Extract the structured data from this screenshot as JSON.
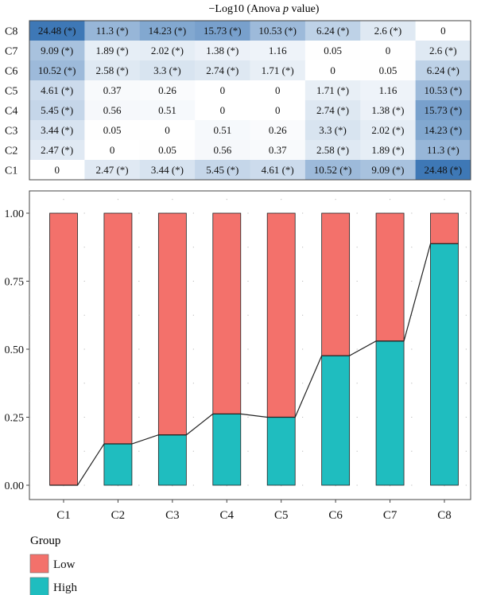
{
  "chart_data": [
    {
      "type": "heatmap",
      "title_prefix": "−Log10 (Anova ",
      "title_italic": "p",
      "title_suffix": " value)",
      "row_labels": [
        "C8",
        "C7",
        "C6",
        "C5",
        "C4",
        "C3",
        "C2",
        "C1"
      ],
      "col_labels": [
        "C1",
        "C2",
        "C3",
        "C4",
        "C5",
        "C6",
        "C7",
        "C8"
      ],
      "values": [
        [
          24.48,
          11.3,
          14.23,
          15.73,
          10.53,
          6.24,
          2.6,
          0
        ],
        [
          9.09,
          1.89,
          2.02,
          1.38,
          1.16,
          0.05,
          0,
          2.6
        ],
        [
          10.52,
          2.58,
          3.3,
          2.74,
          1.71,
          0,
          0.05,
          6.24
        ],
        [
          4.61,
          0.37,
          0.26,
          0,
          0,
          1.71,
          1.16,
          10.53
        ],
        [
          5.45,
          0.56,
          0.51,
          0,
          0,
          2.74,
          1.38,
          15.73
        ],
        [
          3.44,
          0.05,
          0,
          0.51,
          0.26,
          3.3,
          2.02,
          14.23
        ],
        [
          2.47,
          0,
          0.05,
          0.56,
          0.37,
          2.58,
          1.89,
          11.3
        ],
        [
          0,
          2.47,
          3.44,
          5.45,
          4.61,
          10.52,
          9.09,
          24.48
        ]
      ],
      "labels": [
        [
          "24.48 (*)",
          "11.3 (*)",
          "14.23 (*)",
          "15.73 (*)",
          "10.53 (*)",
          "6.24 (*)",
          "2.6 (*)",
          "0"
        ],
        [
          "9.09 (*)",
          "1.89 (*)",
          "2.02 (*)",
          "1.38 (*)",
          "1.16",
          "0.05",
          "0",
          "2.6 (*)"
        ],
        [
          "10.52 (*)",
          "2.58 (*)",
          "3.3 (*)",
          "2.74 (*)",
          "1.71 (*)",
          "0",
          "0.05",
          "6.24 (*)"
        ],
        [
          "4.61 (*)",
          "0.37",
          "0.26",
          "0",
          "0",
          "1.71 (*)",
          "1.16",
          "10.53 (*)"
        ],
        [
          "5.45 (*)",
          "0.56",
          "0.51",
          "0",
          "0",
          "2.74 (*)",
          "1.38 (*)",
          "15.73 (*)"
        ],
        [
          "3.44 (*)",
          "0.05",
          "0",
          "0.51",
          "0.26",
          "3.3 (*)",
          "2.02 (*)",
          "14.23 (*)"
        ],
        [
          "2.47 (*)",
          "0",
          "0.05",
          "0.56",
          "0.37",
          "2.58 (*)",
          "1.89 (*)",
          "11.3 (*)"
        ],
        [
          "0",
          "2.47 (*)",
          "3.44 (*)",
          "5.45 (*)",
          "4.61 (*)",
          "10.52 (*)",
          "9.09 (*)",
          "24.48 (*)"
        ]
      ],
      "color_scale": {
        "low": "#ffffff",
        "high": "#3e78b6",
        "min": 0,
        "max": 24.48
      }
    },
    {
      "type": "bar",
      "stacked": true,
      "categories": [
        "C1",
        "C2",
        "C3",
        "C4",
        "C5",
        "C6",
        "C7",
        "C8"
      ],
      "series": [
        {
          "name": "High",
          "values": [
            0,
            0.152,
            0.185,
            0.262,
            0.25,
            0.476,
            0.53,
            0.888
          ],
          "color": "#1fbdbf"
        },
        {
          "name": "Low",
          "values": [
            1.0,
            0.848,
            0.815,
            0.738,
            0.75,
            0.524,
            0.47,
            0.112
          ],
          "color": "#f3716b"
        }
      ],
      "trend_line": "High",
      "yticks": [
        "0.00",
        "0.25",
        "0.50",
        "0.75",
        "1.00"
      ],
      "ytick_values": [
        0,
        0.25,
        0.5,
        0.75,
        1.0
      ],
      "ylim": [
        0,
        1
      ],
      "grid": "dotted",
      "legend": {
        "title": "Group",
        "entries": [
          "Low",
          "High"
        ],
        "position": "bottom-left"
      }
    }
  ]
}
